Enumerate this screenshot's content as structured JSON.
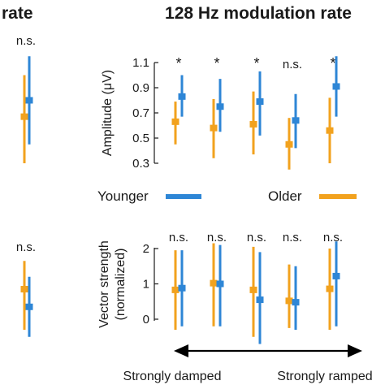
{
  "header": {
    "left_fragment": "rate",
    "title": "128 Hz modulation rate"
  },
  "legend": {
    "younger_label": "Younger",
    "older_label": "Older"
  },
  "axis_arrow": {
    "left_label": "Strongly damped",
    "right_label": "Strongly ramped"
  },
  "colors": {
    "younger": "#2E86D6",
    "older": "#F2A21E",
    "text": "#1a1a1a"
  },
  "left_panel": {
    "top": {
      "sig": "n.s.",
      "older": {
        "mean": 0.67,
        "low": 0.3,
        "high": 1.0
      },
      "younger": {
        "mean": 0.8,
        "low": 0.45,
        "high": 1.15
      }
    },
    "bottom": {
      "sig": "n.s.",
      "older": {
        "mean": 0.85,
        "low": -0.3,
        "high": 1.65
      },
      "younger": {
        "mean": 0.35,
        "low": -0.5,
        "high": 1.2
      }
    }
  },
  "chart_data": [
    {
      "type": "errorbar",
      "ylabel": "Amplitude (μV)",
      "ylim": [
        0.3,
        1.1
      ],
      "yticks": [
        "0.3",
        "0.5",
        "0.7",
        "0.9",
        "1.1"
      ],
      "significance": [
        "*",
        "*",
        "*",
        "n.s.",
        "*"
      ],
      "series": [
        {
          "name": "Younger",
          "mean": [
            0.83,
            0.75,
            0.79,
            0.64,
            0.91
          ],
          "low": [
            0.67,
            0.55,
            0.52,
            0.42,
            0.67
          ],
          "high": [
            1.0,
            0.97,
            1.03,
            0.85,
            1.15
          ]
        },
        {
          "name": "Older",
          "mean": [
            0.63,
            0.58,
            0.61,
            0.45,
            0.56
          ],
          "low": [
            0.45,
            0.34,
            0.37,
            0.25,
            0.3
          ],
          "high": [
            0.79,
            0.81,
            0.87,
            0.66,
            0.82
          ]
        }
      ]
    },
    {
      "type": "errorbar",
      "ylabel": "Vector strength (normalized)",
      "ylim": [
        0,
        2
      ],
      "yticks": [
        "0",
        "1",
        "2"
      ],
      "significance": [
        "n.s.",
        "n.s.",
        "n.s.",
        "n.s.",
        "n.s."
      ],
      "series": [
        {
          "name": "Younger",
          "mean": [
            0.88,
            1.0,
            0.55,
            0.48,
            1.22
          ],
          "low": [
            -0.2,
            -0.2,
            -0.7,
            -0.3,
            -0.2
          ],
          "high": [
            1.95,
            2.1,
            1.9,
            1.5,
            2.2
          ]
        },
        {
          "name": "Older",
          "mean": [
            0.83,
            1.02,
            0.83,
            0.52,
            0.86
          ],
          "low": [
            -0.3,
            -0.2,
            -0.5,
            -0.25,
            -0.3
          ],
          "high": [
            1.95,
            2.15,
            2.05,
            1.55,
            2.0
          ]
        }
      ]
    }
  ]
}
